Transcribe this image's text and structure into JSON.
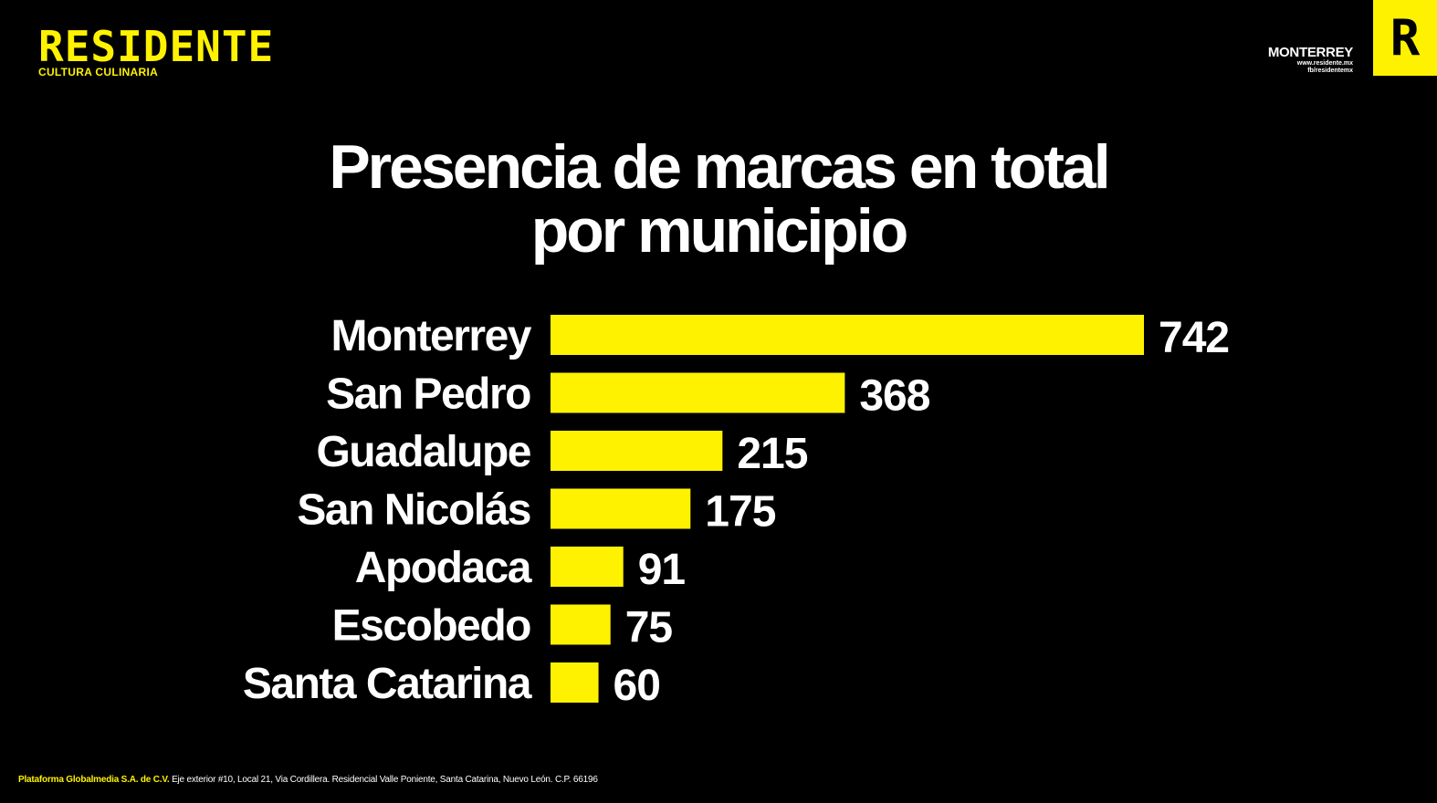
{
  "brand": {
    "name": "RESIDENTE",
    "tagline": "CULTURA CULINARIA",
    "badge_letter": "R",
    "accent_color": "#FFF200",
    "background_color": "#000000"
  },
  "edition": {
    "city": "MONTERREY",
    "website": "www.residente.mx",
    "social": "fb/residentemx"
  },
  "title": {
    "line1": "Presencia de marcas en total",
    "line2": "por municipio"
  },
  "chart_data": {
    "type": "bar",
    "orientation": "horizontal",
    "title": "Presencia de marcas en total por municipio",
    "categories": [
      "Monterrey",
      "San Pedro",
      "Guadalupe",
      "San Nicolás",
      "Apodaca",
      "Escobedo",
      "Santa Catarina"
    ],
    "values": [
      742,
      368,
      215,
      175,
      91,
      75,
      60
    ],
    "xlim": [
      0,
      742
    ],
    "bar_color": "#FFF200",
    "grid": false,
    "data_labels": true
  },
  "footer": {
    "company": "Plataforma Globalmedia S.A. de C.V.",
    "address": "Eje exterior #10, Local 21, Via Cordillera. Residencial Valle Poniente, Santa Catarina, Nuevo León. C.P. 66196"
  }
}
